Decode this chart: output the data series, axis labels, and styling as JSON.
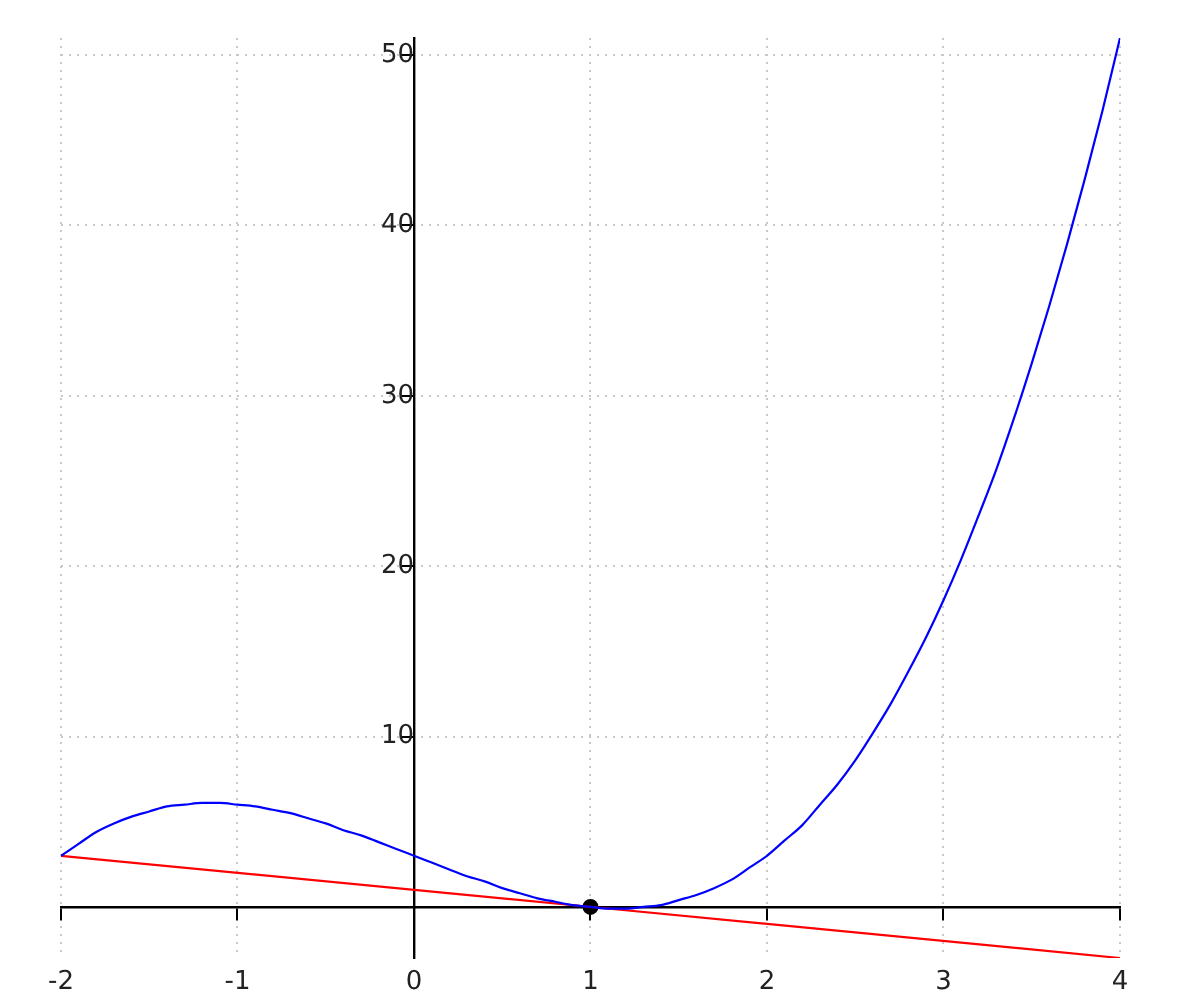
{
  "chart_data": {
    "type": "line",
    "xlim": [
      -2,
      4
    ],
    "ylim": [
      -3,
      51
    ],
    "xticks": [
      -2,
      -1,
      0,
      1,
      2,
      3,
      4
    ],
    "yticks": [
      10,
      20,
      30,
      40,
      50
    ],
    "grid": true,
    "marker": "none",
    "series": [
      {
        "type": "line",
        "color": "#0000ff",
        "x": [
          -2.0,
          -1.9,
          -1.8,
          -1.7,
          -1.6,
          -1.5,
          -1.4,
          -1.3,
          -1.2,
          -1.1,
          -1.0,
          -0.9,
          -0.8,
          -0.7,
          -0.6,
          -0.5,
          -0.4,
          -0.3,
          -0.2,
          -0.1,
          0.0,
          0.1,
          0.2,
          0.3,
          0.4,
          0.5,
          0.6,
          0.7,
          0.8,
          0.9,
          1.0,
          1.1,
          1.2,
          1.3,
          1.4,
          1.5,
          1.6,
          1.7,
          1.8,
          1.9,
          2.0,
          2.1,
          2.2,
          2.3,
          2.4,
          2.5,
          2.6,
          2.7,
          2.8,
          2.9,
          3.0,
          3.1,
          3.2,
          3.3,
          3.4,
          3.5,
          3.6,
          3.7,
          3.8,
          3.9,
          4.0
        ],
        "values": [
          3.0,
          3.7,
          4.4,
          4.9,
          5.3,
          5.6,
          5.9,
          6.0,
          6.1,
          6.1,
          6.0,
          5.9,
          5.7,
          5.5,
          5.2,
          4.9,
          4.5,
          4.2,
          3.8,
          3.4,
          3.0,
          2.6,
          2.2,
          1.8,
          1.5,
          1.1,
          0.8,
          0.5,
          0.3,
          0.1,
          0.0,
          -0.1,
          -0.1,
          0.0,
          0.1,
          0.4,
          0.7,
          1.1,
          1.6,
          2.3,
          3.0,
          3.9,
          4.8,
          6.0,
          7.2,
          8.6,
          10.2,
          11.9,
          13.8,
          15.8,
          18.0,
          20.4,
          23.0,
          25.7,
          28.7,
          31.9,
          35.3,
          38.9,
          42.7,
          46.7,
          51.0
        ]
      },
      {
        "type": "line",
        "color": "#ff0000",
        "x": [
          -2,
          4
        ],
        "values": [
          3,
          -3
        ]
      },
      {
        "type": "scatter",
        "color": "#000000",
        "x": [
          1
        ],
        "values": [
          0
        ],
        "marker": "circle"
      }
    ]
  }
}
